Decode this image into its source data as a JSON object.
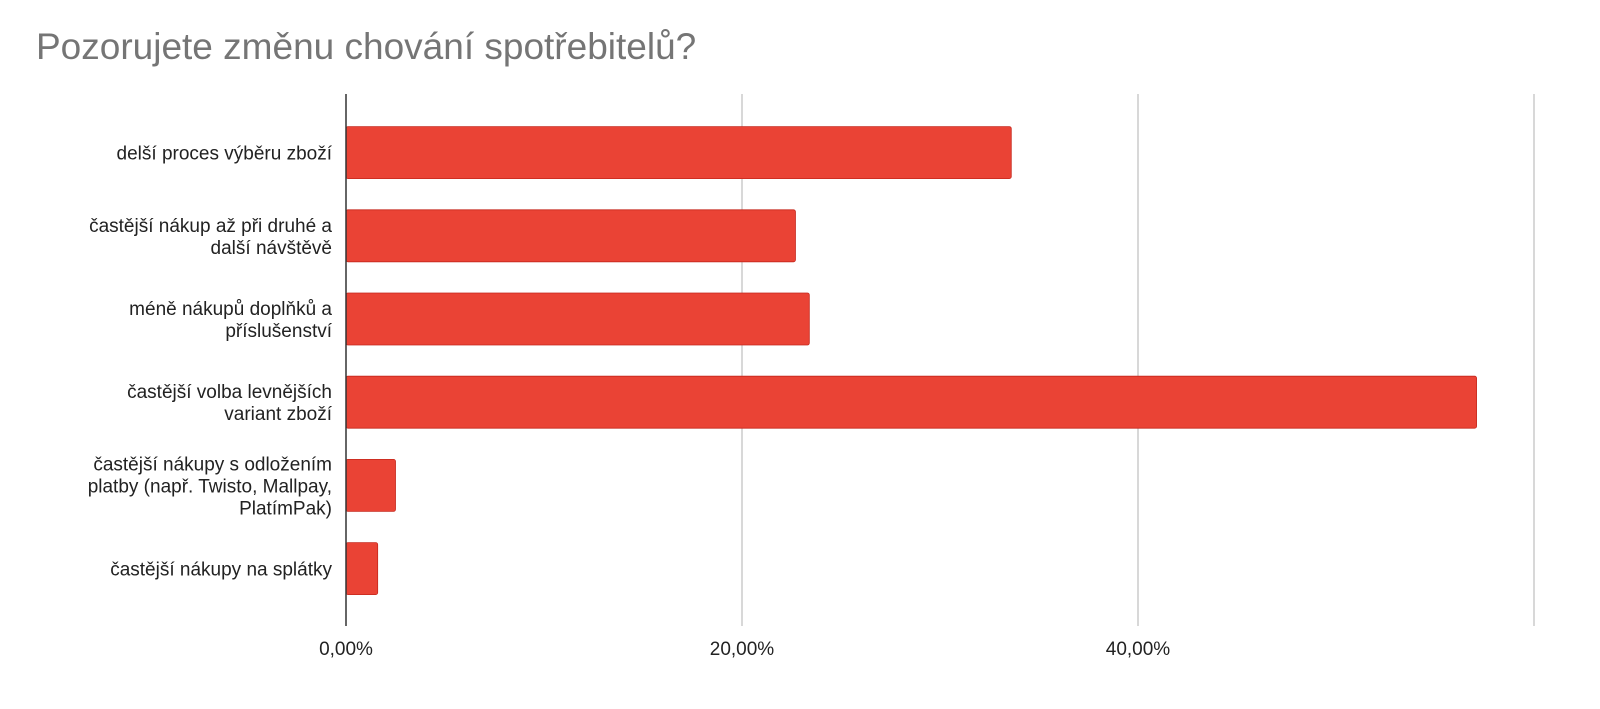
{
  "chart_data": {
    "type": "bar",
    "orientation": "horizontal",
    "title": "Pozorujete změnu chování spotřebitelů?",
    "xlabel": "",
    "ylabel": "",
    "categories": [
      [
        "delší proces výběru zboží"
      ],
      [
        "častější nákup až při druhé a",
        "další návštěvě"
      ],
      [
        "méně nákupů doplňků a",
        "příslušenství"
      ],
      [
        "častější volba levnějších",
        "variant zboží"
      ],
      [
        "častější nákupy s odložením",
        "platby (např. Twisto, Mallpay,",
        "PlatímPak)"
      ],
      [
        "častější nákupy na splátky"
      ]
    ],
    "series": [
      {
        "values": [
          33.6,
          22.7,
          23.4,
          57.1,
          2.5,
          1.6
        ],
        "color": "#ea4335"
      }
    ],
    "xlim": [
      0,
      60
    ],
    "xticks": [
      0,
      20,
      40
    ],
    "xtick_labels": [
      "0,00%",
      "20,00%",
      "40,00%"
    ],
    "grid": true,
    "legend": "none"
  }
}
